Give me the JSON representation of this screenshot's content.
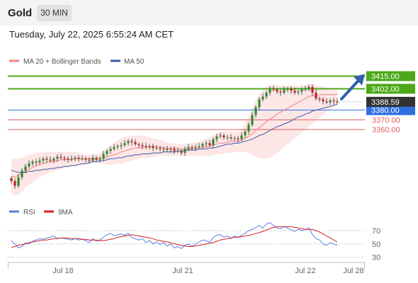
{
  "header": {
    "title": "Gold",
    "timeframe": "30 MIN"
  },
  "timestamp": "Tuesday, July 22, 2025 6:55:24 AM CET",
  "colors": {
    "up_candle": "#2e8b2e",
    "down_candle": "#c62020",
    "ma20": "#f08080",
    "ma50": "#3b5ba8",
    "bollinger_fill": "#fde2e2",
    "resistance": "#4da91a",
    "support": "#2f6fe0",
    "support_minor": "#e06060",
    "rsi": "#5b7fe0",
    "rsi_ma": "#d42020",
    "last_price_tag": "#333333",
    "arrow": "#2f5fa8"
  },
  "chart_data": [
    {
      "type": "candlestick",
      "title": "",
      "legend": [
        {
          "name": "MA 20 + Bollinger Bands",
          "color": "#f08080"
        },
        {
          "name": "MA 50",
          "color": "#3b5ba8"
        }
      ],
      "x_ticks": [
        "Jul 18",
        "Jul 21",
        "Jul 22",
        "Jul 28"
      ],
      "ylim": [
        3288,
        3422
      ],
      "levels": [
        {
          "label": "3415.00",
          "value": 3415,
          "kind": "resistance"
        },
        {
          "label": "3402.00",
          "value": 3402,
          "kind": "resistance"
        },
        {
          "label": "3380.00",
          "value": 3380,
          "kind": "support"
        },
        {
          "label": "3370.00",
          "value": 3370,
          "kind": "support_minor"
        },
        {
          "label": "3360.00",
          "value": 3360,
          "kind": "support_minor"
        }
      ],
      "last_price": {
        "label": "3388.59",
        "value": 3388.59
      },
      "forecast_arrow": {
        "from": 3390,
        "to": 3415,
        "direction": "up"
      },
      "close": [
        3307,
        3302,
        3311,
        3318,
        3322,
        3325,
        3327,
        3326,
        3328,
        3330,
        3329,
        3328,
        3330,
        3332,
        3331,
        3330,
        3329,
        3330,
        3331,
        3330,
        3330,
        3329,
        3328,
        3331,
        3329,
        3330,
        3335,
        3338,
        3340,
        3342,
        3343,
        3344,
        3346,
        3348,
        3347,
        3345,
        3344,
        3343,
        3342,
        3343,
        3341,
        3341,
        3340,
        3340,
        3339,
        3340,
        3338,
        3338,
        3336,
        3340,
        3342,
        3341,
        3342,
        3343,
        3345,
        3346,
        3344,
        3350,
        3353,
        3354,
        3352,
        3352,
        3351,
        3351,
        3350,
        3354,
        3358,
        3365,
        3375,
        3383,
        3391,
        3394,
        3398,
        3402,
        3401,
        3399,
        3398,
        3401,
        3402,
        3400,
        3398,
        3399,
        3401,
        3402,
        3404,
        3398,
        3392,
        3391,
        3389,
        3388,
        3390,
        3389,
        3388
      ],
      "ma20": [
        3312,
        3311,
        3313,
        3315,
        3317,
        3319,
        3321,
        3323,
        3324,
        3325,
        3326,
        3327,
        3327,
        3328,
        3329,
        3329,
        3329,
        3329,
        3330,
        3330,
        3330,
        3330,
        3330,
        3330,
        3330,
        3330,
        3331,
        3332,
        3333,
        3334,
        3335,
        3337,
        3338,
        3339,
        3340,
        3341,
        3341,
        3342,
        3342,
        3342,
        3342,
        3342,
        3342,
        3341,
        3341,
        3341,
        3341,
        3340,
        3340,
        3340,
        3340,
        3340,
        3341,
        3341,
        3342,
        3342,
        3343,
        3344,
        3345,
        3346,
        3346,
        3347,
        3348,
        3348,
        3348,
        3349,
        3351,
        3353,
        3356,
        3359,
        3362,
        3365,
        3368,
        3371,
        3373,
        3376,
        3378,
        3380,
        3382,
        3384,
        3386,
        3388,
        3390,
        3392,
        3394,
        3395,
        3395,
        3396,
        3396,
        3396,
        3396,
        3396,
        3396
      ],
      "ma50": [
        3318,
        3317,
        3316,
        3316,
        3316,
        3317,
        3317,
        3318,
        3318,
        3319,
        3319,
        3320,
        3320,
        3321,
        3321,
        3322,
        3322,
        3323,
        3323,
        3324,
        3325,
        3325,
        3326,
        3327,
        3327,
        3328,
        3328,
        3329,
        3330,
        3330,
        3331,
        3331,
        3332,
        3333,
        3333,
        3334,
        3334,
        3335,
        3335,
        3335,
        3336,
        3336,
        3336,
        3337,
        3337,
        3337,
        3337,
        3338,
        3338,
        3338,
        3339,
        3339,
        3339,
        3340,
        3340,
        3340,
        3341,
        3341,
        3342,
        3343,
        3344,
        3345,
        3345,
        3346,
        3346,
        3347,
        3348,
        3349,
        3350,
        3352,
        3354,
        3355,
        3357,
        3359,
        3361,
        3363,
        3364,
        3366,
        3367,
        3369,
        3371,
        3373,
        3374,
        3376,
        3377,
        3379,
        3380,
        3381,
        3382,
        3383,
        3384,
        3385,
        3386
      ],
      "bb_upper": [
        3330,
        3330,
        3330,
        3331,
        3332,
        3334,
        3335,
        3336,
        3336,
        3337,
        3337,
        3337,
        3337,
        3337,
        3337,
        3337,
        3337,
        3337,
        3337,
        3336,
        3335,
        3334,
        3334,
        3334,
        3335,
        3336,
        3338,
        3341,
        3344,
        3347,
        3349,
        3351,
        3352,
        3353,
        3354,
        3354,
        3354,
        3354,
        3353,
        3352,
        3351,
        3350,
        3349,
        3348,
        3347,
        3346,
        3346,
        3345,
        3345,
        3345,
        3346,
        3346,
        3347,
        3348,
        3349,
        3351,
        3352,
        3354,
        3356,
        3357,
        3358,
        3358,
        3358,
        3358,
        3358,
        3361,
        3366,
        3374,
        3382,
        3390,
        3397,
        3401,
        3404,
        3406,
        3406,
        3406,
        3405,
        3405,
        3405,
        3405,
        3405,
        3405,
        3406,
        3406,
        3407,
        3407,
        3406,
        3405,
        3404,
        3403,
        3402,
        3401,
        3400
      ],
      "bb_lower": [
        3294,
        3292,
        3293,
        3296,
        3300,
        3303,
        3306,
        3309,
        3311,
        3313,
        3314,
        3316,
        3317,
        3318,
        3320,
        3321,
        3321,
        3322,
        3322,
        3323,
        3323,
        3324,
        3325,
        3326,
        3326,
        3325,
        3325,
        3324,
        3324,
        3324,
        3325,
        3325,
        3326,
        3327,
        3328,
        3329,
        3330,
        3331,
        3331,
        3331,
        3332,
        3333,
        3333,
        3333,
        3333,
        3333,
        3333,
        3333,
        3333,
        3333,
        3333,
        3333,
        3333,
        3333,
        3333,
        3333,
        3333,
        3334,
        3334,
        3335,
        3335,
        3336,
        3336,
        3337,
        3337,
        3337,
        3337,
        3336,
        3334,
        3332,
        3330,
        3330,
        3330,
        3331,
        3333,
        3336,
        3339,
        3342,
        3345,
        3348,
        3351,
        3354,
        3357,
        3360,
        3363,
        3366,
        3369,
        3372,
        3375,
        3378,
        3381,
        3383,
        3385
      ]
    },
    {
      "type": "line",
      "title": "",
      "legend": [
        {
          "name": "RSI",
          "color": "#5b7fe0"
        },
        {
          "name": "9MA",
          "color": "#d42020"
        }
      ],
      "y_ticks": [
        70,
        50,
        30
      ],
      "ylim": [
        22,
        85
      ],
      "rsi": [
        55,
        50,
        44,
        46,
        52,
        50,
        54,
        56,
        58,
        57,
        59,
        60,
        62,
        58,
        59,
        58,
        57,
        56,
        58,
        56,
        57,
        55,
        52,
        58,
        54,
        56,
        60,
        64,
        66,
        62,
        64,
        65,
        63,
        66,
        60,
        58,
        56,
        58,
        52,
        55,
        50,
        53,
        49,
        52,
        47,
        50,
        44,
        46,
        43,
        48,
        50,
        46,
        50,
        53,
        56,
        55,
        52,
        60,
        63,
        64,
        60,
        62,
        58,
        62,
        60,
        63,
        66,
        70,
        72,
        75,
        78,
        74,
        80,
        82,
        78,
        74,
        73,
        76,
        74,
        71,
        69,
        72,
        70,
        72,
        74,
        64,
        58,
        56,
        50,
        48,
        52,
        50,
        48
      ],
      "rsi_ma": [
        45,
        46,
        48,
        49,
        50,
        52,
        53,
        54,
        55,
        56,
        56,
        57,
        58,
        58,
        59,
        59,
        59,
        58,
        58,
        58,
        57,
        57,
        56,
        56,
        56,
        55,
        55,
        56,
        57,
        58,
        60,
        61,
        62,
        63,
        64,
        63,
        62,
        61,
        60,
        59,
        58,
        56,
        55,
        54,
        53,
        52,
        50,
        49,
        48,
        47,
        46,
        46,
        47,
        48,
        49,
        50,
        51,
        52,
        54,
        56,
        57,
        58,
        59,
        60,
        60,
        61,
        62,
        63,
        64,
        66,
        67,
        69,
        71,
        73,
        75,
        76,
        76,
        76,
        76,
        76,
        75,
        74,
        73,
        72,
        72,
        72,
        70,
        68,
        65,
        62,
        59,
        56,
        53
      ]
    }
  ]
}
